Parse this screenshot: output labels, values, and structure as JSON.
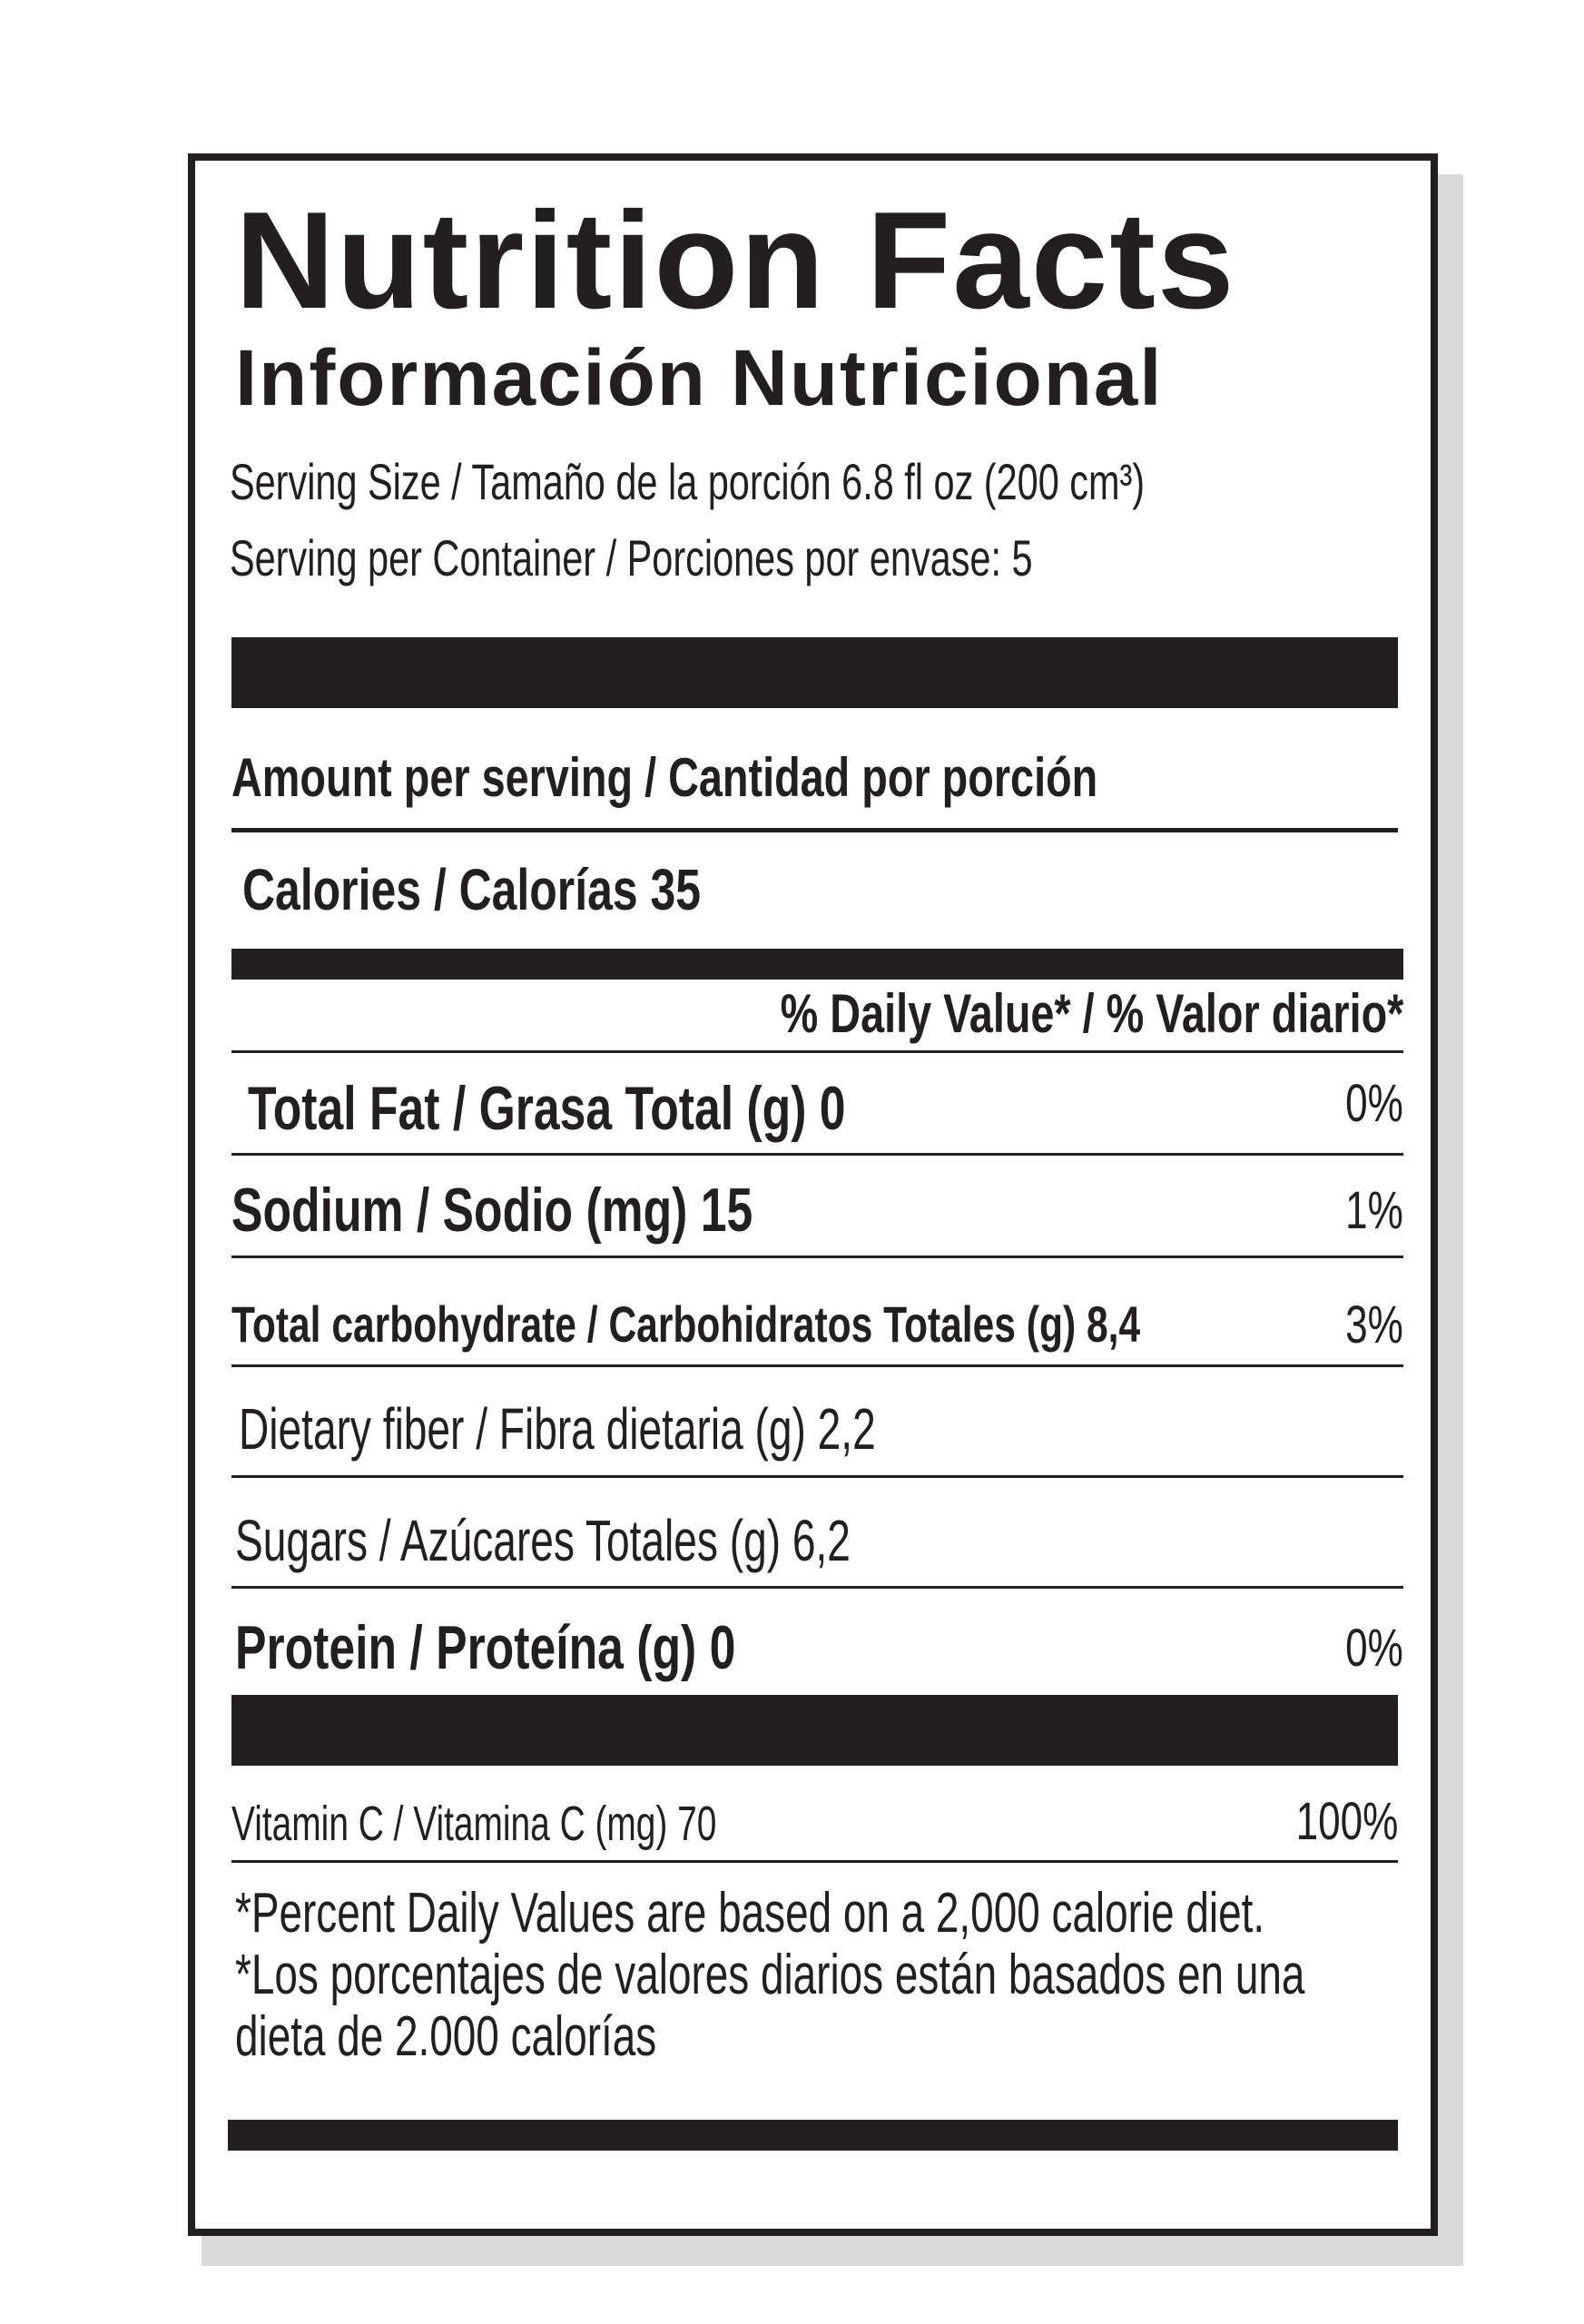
{
  "title": "Nutrition Facts",
  "subtitle": "Información Nutricional",
  "serving_size": "Serving Size / Tamaño de la porción 6.8 fl oz (200 cm³)",
  "servings_per_container": "Serving per Container / Porciones por envase: 5",
  "amount_per_serving": "Amount per serving / Cantidad por porción",
  "calories": "Calories / Calorías 35",
  "daily_value_header": "% Daily Value* / % Valor diario*",
  "nutrients": [
    {
      "label": "Total Fat / Grasa Total (g) 0",
      "dv": "0%"
    },
    {
      "label": "Sodium / Sodio (mg) 15",
      "dv": "1%"
    },
    {
      "label": "Total carbohydrate / Carbohidratos Totales (g) 8,4",
      "dv": "3%"
    },
    {
      "label": "Dietary fiber / Fibra dietaria (g) 2,2",
      "dv": ""
    },
    {
      "label": "Sugars / Azúcares Totales (g) 6,2",
      "dv": ""
    },
    {
      "label": "Protein / Proteína (g) 0",
      "dv": "0%"
    }
  ],
  "vitamin": {
    "label": "Vitamin C / Vitamina C (mg) 70",
    "dv": "100%"
  },
  "footnote": [
    "*Percent Daily Values are based on a 2,000 calorie diet.",
    "*Los porcentajes de valores diarios están basados en una",
    "dieta de 2.000 calorías"
  ]
}
